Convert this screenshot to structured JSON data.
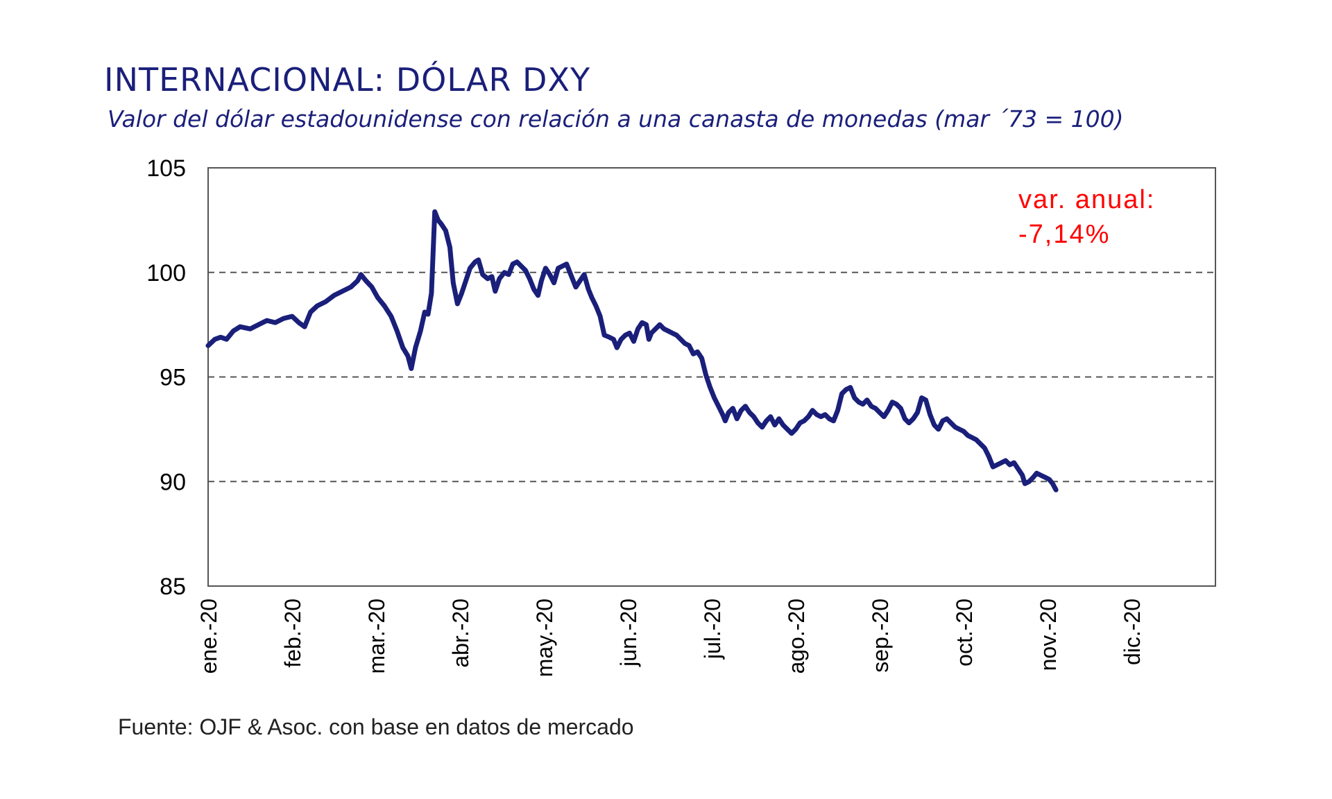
{
  "title": "INTERNACIONAL: DÓLAR DXY",
  "subtitle": "Valor del dólar estadounidense con relación a una canasta de monedas (mar ´73 = 100)",
  "source": "Fuente: OJF & Asoc. con base en datos de mercado",
  "annotation": {
    "line1": "var. anual:",
    "line2": "-7,14%"
  },
  "colors": {
    "line": "#1a1f7a",
    "annotation": "#ff0000",
    "title": "#1a1f7a"
  },
  "chart_data": {
    "type": "line",
    "title": "INTERNACIONAL: DÓLAR DXY",
    "ylim": [
      85,
      105
    ],
    "yticks": [
      85,
      90,
      95,
      100,
      105
    ],
    "x_tick_labels": [
      "ene.-20",
      "feb.-20",
      "mar.-20",
      "abr.-20",
      "may.-20",
      "jun.-20",
      "jul.-20",
      "ago.-20",
      "sep.-20",
      "oct.-20",
      "nov.-20",
      "dic.-20"
    ],
    "gridlines_y": [
      90,
      95,
      100
    ],
    "grid_style": "dashed",
    "series": [
      {
        "values": [
          [
            0.0,
            96.5
          ],
          [
            0.08,
            96.8
          ],
          [
            0.15,
            96.9
          ],
          [
            0.22,
            96.8
          ],
          [
            0.3,
            97.2
          ],
          [
            0.38,
            97.4
          ],
          [
            0.5,
            97.3
          ],
          [
            0.6,
            97.5
          ],
          [
            0.7,
            97.7
          ],
          [
            0.8,
            97.6
          ],
          [
            0.9,
            97.8
          ],
          [
            1.0,
            97.9
          ],
          [
            1.08,
            97.6
          ],
          [
            1.15,
            97.4
          ],
          [
            1.22,
            98.1
          ],
          [
            1.3,
            98.4
          ],
          [
            1.4,
            98.6
          ],
          [
            1.5,
            98.9
          ],
          [
            1.6,
            99.1
          ],
          [
            1.7,
            99.3
          ],
          [
            1.78,
            99.6
          ],
          [
            1.82,
            99.9
          ],
          [
            1.88,
            99.6
          ],
          [
            1.95,
            99.3
          ],
          [
            2.02,
            98.8
          ],
          [
            2.1,
            98.4
          ],
          [
            2.18,
            97.9
          ],
          [
            2.25,
            97.2
          ],
          [
            2.32,
            96.4
          ],
          [
            2.38,
            96.0
          ],
          [
            2.42,
            95.4
          ],
          [
            2.47,
            96.4
          ],
          [
            2.53,
            97.2
          ],
          [
            2.58,
            98.1
          ],
          [
            2.62,
            98.0
          ],
          [
            2.66,
            99.0
          ],
          [
            2.7,
            102.9
          ],
          [
            2.74,
            102.5
          ],
          [
            2.78,
            102.3
          ],
          [
            2.83,
            102.0
          ],
          [
            2.88,
            101.2
          ],
          [
            2.92,
            99.5
          ],
          [
            2.97,
            98.5
          ],
          [
            3.02,
            99.0
          ],
          [
            3.07,
            99.6
          ],
          [
            3.12,
            100.2
          ],
          [
            3.18,
            100.5
          ],
          [
            3.22,
            100.6
          ],
          [
            3.27,
            99.9
          ],
          [
            3.33,
            99.7
          ],
          [
            3.38,
            99.8
          ],
          [
            3.42,
            99.1
          ],
          [
            3.47,
            99.7
          ],
          [
            3.53,
            100.0
          ],
          [
            3.58,
            99.9
          ],
          [
            3.63,
            100.4
          ],
          [
            3.68,
            100.5
          ],
          [
            3.73,
            100.3
          ],
          [
            3.78,
            100.1
          ],
          [
            3.83,
            99.7
          ],
          [
            3.88,
            99.2
          ],
          [
            3.93,
            98.9
          ],
          [
            3.97,
            99.6
          ],
          [
            4.02,
            100.2
          ],
          [
            4.07,
            99.9
          ],
          [
            4.12,
            99.5
          ],
          [
            4.17,
            100.2
          ],
          [
            4.22,
            100.3
          ],
          [
            4.27,
            100.4
          ],
          [
            4.33,
            99.8
          ],
          [
            4.38,
            99.3
          ],
          [
            4.43,
            99.6
          ],
          [
            4.48,
            99.9
          ],
          [
            4.53,
            99.2
          ],
          [
            4.57,
            98.8
          ],
          [
            4.62,
            98.4
          ],
          [
            4.67,
            97.9
          ],
          [
            4.72,
            97.0
          ],
          [
            4.78,
            96.9
          ],
          [
            4.83,
            96.8
          ],
          [
            4.87,
            96.4
          ],
          [
            4.92,
            96.8
          ],
          [
            4.97,
            97.0
          ],
          [
            5.02,
            97.1
          ],
          [
            5.07,
            96.7
          ],
          [
            5.12,
            97.3
          ],
          [
            5.17,
            97.6
          ],
          [
            5.22,
            97.5
          ],
          [
            5.25,
            96.8
          ],
          [
            5.28,
            97.1
          ],
          [
            5.33,
            97.3
          ],
          [
            5.38,
            97.5
          ],
          [
            5.43,
            97.3
          ],
          [
            5.48,
            97.2
          ],
          [
            5.53,
            97.1
          ],
          [
            5.58,
            97.0
          ],
          [
            5.63,
            96.8
          ],
          [
            5.68,
            96.6
          ],
          [
            5.73,
            96.5
          ],
          [
            5.78,
            96.1
          ],
          [
            5.83,
            96.2
          ],
          [
            5.88,
            95.9
          ],
          [
            5.93,
            95.1
          ],
          [
            5.98,
            94.5
          ],
          [
            6.03,
            94.0
          ],
          [
            6.08,
            93.6
          ],
          [
            6.13,
            93.2
          ],
          [
            6.16,
            92.9
          ],
          [
            6.2,
            93.3
          ],
          [
            6.25,
            93.5
          ],
          [
            6.3,
            93.0
          ],
          [
            6.35,
            93.4
          ],
          [
            6.4,
            93.6
          ],
          [
            6.45,
            93.3
          ],
          [
            6.5,
            93.1
          ],
          [
            6.55,
            92.8
          ],
          [
            6.6,
            92.6
          ],
          [
            6.65,
            92.9
          ],
          [
            6.7,
            93.1
          ],
          [
            6.75,
            92.7
          ],
          [
            6.8,
            93.0
          ],
          [
            6.85,
            92.7
          ],
          [
            6.9,
            92.5
          ],
          [
            6.95,
            92.3
          ],
          [
            7.0,
            92.5
          ],
          [
            7.05,
            92.8
          ],
          [
            7.1,
            92.9
          ],
          [
            7.15,
            93.1
          ],
          [
            7.2,
            93.4
          ],
          [
            7.25,
            93.2
          ],
          [
            7.3,
            93.1
          ],
          [
            7.35,
            93.2
          ],
          [
            7.4,
            93.0
          ],
          [
            7.45,
            92.9
          ],
          [
            7.5,
            93.4
          ],
          [
            7.55,
            94.2
          ],
          [
            7.6,
            94.4
          ],
          [
            7.65,
            94.5
          ],
          [
            7.7,
            94.0
          ],
          [
            7.75,
            93.8
          ],
          [
            7.8,
            93.7
          ],
          [
            7.85,
            93.9
          ],
          [
            7.9,
            93.6
          ],
          [
            7.95,
            93.5
          ],
          [
            8.0,
            93.3
          ],
          [
            8.05,
            93.1
          ],
          [
            8.1,
            93.4
          ],
          [
            8.15,
            93.8
          ],
          [
            8.2,
            93.7
          ],
          [
            8.25,
            93.5
          ],
          [
            8.3,
            93.0
          ],
          [
            8.35,
            92.8
          ],
          [
            8.4,
            93.0
          ],
          [
            8.45,
            93.3
          ],
          [
            8.5,
            94.0
          ],
          [
            8.55,
            93.9
          ],
          [
            8.6,
            93.2
          ],
          [
            8.65,
            92.7
          ],
          [
            8.7,
            92.5
          ],
          [
            8.75,
            92.9
          ],
          [
            8.8,
            93.0
          ],
          [
            8.85,
            92.8
          ],
          [
            8.9,
            92.6
          ],
          [
            8.95,
            92.5
          ],
          [
            9.0,
            92.4
          ],
          [
            9.05,
            92.2
          ],
          [
            9.1,
            92.1
          ],
          [
            9.15,
            92.0
          ],
          [
            9.2,
            91.8
          ],
          [
            9.25,
            91.6
          ],
          [
            9.3,
            91.2
          ],
          [
            9.35,
            90.7
          ],
          [
            9.4,
            90.8
          ],
          [
            9.45,
            90.9
          ],
          [
            9.5,
            91.0
          ],
          [
            9.55,
            90.8
          ],
          [
            9.6,
            90.9
          ],
          [
            9.65,
            90.6
          ],
          [
            9.7,
            90.3
          ],
          [
            9.73,
            89.9
          ],
          [
            9.78,
            90.0
          ],
          [
            9.83,
            90.2
          ],
          [
            9.87,
            90.4
          ],
          [
            9.92,
            90.3
          ],
          [
            9.97,
            90.2
          ],
          [
            10.02,
            90.1
          ],
          [
            10.06,
            89.9
          ],
          [
            10.1,
            89.6
          ]
        ]
      }
    ],
    "x_domain": [
      0,
      12
    ]
  }
}
